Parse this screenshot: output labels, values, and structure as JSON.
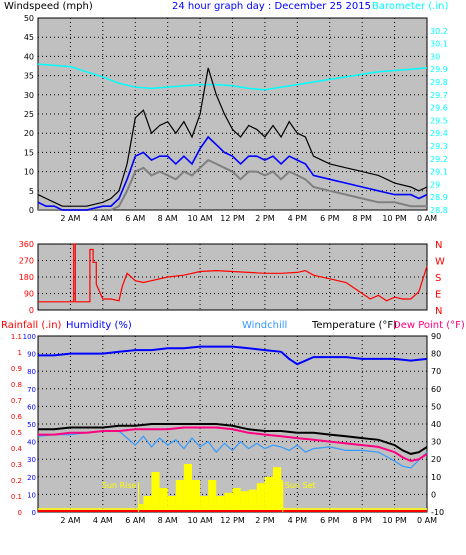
{
  "colors": {
    "panel_bg": "#c0c0c0",
    "wind_black": "#000000",
    "wind_blue": "#0000ff",
    "wind_grey": "#808080",
    "barometer": "#00ffff",
    "direction": "#ff0000",
    "humidity": "#0000ff",
    "temperature": "#000000",
    "dew_point": "#ff0080",
    "windchill": "#3399ff",
    "rain": "#ffff00",
    "rain_base": "#ff0000"
  },
  "chart_data": [
    {
      "type": "line",
      "title": "24 hour graph day : December 25 2015",
      "ylabel": "Windspeed (mph)",
      "y2label": "Barometer (.in)",
      "x_ticks": [
        "2 AM",
        "4 AM",
        "6 AM",
        "8 AM",
        "10 AM",
        "12 PM",
        "2 PM",
        "4 PM",
        "6 PM",
        "8 PM",
        "10 PM",
        "0 AM"
      ],
      "xlim": [
        0,
        24
      ],
      "ylim": [
        0,
        50
      ],
      "y_ticks": [
        "0",
        "5",
        "10",
        "15",
        "20",
        "25",
        "30",
        "35",
        "40",
        "45",
        "50"
      ],
      "y2lim": [
        28.8,
        30.3
      ],
      "y2_ticks": [
        "28.8",
        "28.9",
        "29",
        "29.1",
        "29.2",
        "29.3",
        "29.4",
        "29.5",
        "29.6",
        "29.7",
        "29.8",
        "29.9",
        "30",
        "30.1",
        "30.2"
      ],
      "grid": true,
      "series": [
        {
          "key": "gust",
          "x": [
            0,
            0.5,
            1,
            1.5,
            2,
            3,
            4,
            4.5,
            5,
            5.5,
            6,
            6.5,
            7,
            7.5,
            8,
            8.5,
            9,
            9.5,
            10,
            10.5,
            11,
            11.5,
            12,
            12.5,
            13,
            13.5,
            14,
            14.5,
            15,
            15.5,
            16,
            16.5,
            17,
            18,
            19,
            20,
            21,
            22,
            23,
            23.5,
            24
          ],
          "values": [
            4,
            3,
            2,
            1,
            1,
            1,
            2,
            3,
            5,
            12,
            24,
            26,
            20,
            22,
            23,
            20,
            23,
            19,
            25,
            37,
            30,
            25,
            21,
            19,
            22,
            21,
            19,
            22,
            19,
            23,
            20,
            19,
            14,
            12,
            11,
            10,
            9,
            7,
            6,
            5,
            6
          ]
        },
        {
          "key": "average",
          "x": [
            0,
            0.5,
            1,
            1.5,
            2,
            3,
            4,
            4.5,
            5,
            5.5,
            6,
            6.5,
            7,
            7.5,
            8,
            8.5,
            9,
            9.5,
            10,
            10.5,
            11,
            11.5,
            12,
            12.5,
            13,
            13.5,
            14,
            14.5,
            15,
            15.5,
            16,
            16.5,
            17,
            18,
            19,
            20,
            21,
            22,
            23,
            23.5,
            24
          ],
          "values": [
            2,
            1,
            1,
            0,
            0,
            0,
            1,
            1,
            3,
            8,
            14,
            15,
            13,
            14,
            14,
            12,
            14,
            12,
            16,
            19,
            17,
            15,
            14,
            12,
            14,
            14,
            13,
            14,
            12,
            14,
            13,
            12,
            9,
            8,
            7,
            6,
            5,
            4,
            4,
            3,
            4
          ]
        },
        {
          "key": "low",
          "x": [
            0,
            1,
            2,
            3,
            4,
            4.5,
            5,
            5.5,
            6,
            6.5,
            7,
            7.5,
            8,
            8.5,
            9,
            9.5,
            10,
            10.5,
            11,
            11.5,
            12,
            12.5,
            13,
            13.5,
            14,
            14.5,
            15,
            15.5,
            16,
            16.5,
            17,
            18,
            19,
            20,
            21,
            22,
            23,
            24
          ],
          "values": [
            0,
            0,
            0,
            0,
            0,
            0,
            1,
            5,
            10,
            11,
            9,
            10,
            9,
            8,
            10,
            9,
            11,
            13,
            12,
            11,
            10,
            8,
            10,
            10,
            9,
            10,
            8,
            10,
            9,
            8,
            6,
            5,
            4,
            3,
            2,
            2,
            1,
            1
          ]
        },
        {
          "key": "barometer",
          "x": [
            0,
            1,
            2,
            3,
            4,
            5,
            6,
            7,
            8,
            9,
            10,
            11,
            12,
            13,
            14,
            15,
            16,
            17,
            18,
            19,
            20,
            21,
            22,
            23,
            24
          ],
          "values": [
            29.94,
            29.93,
            29.92,
            29.88,
            29.84,
            29.79,
            29.76,
            29.75,
            29.76,
            29.77,
            29.78,
            29.78,
            29.77,
            29.75,
            29.74,
            29.76,
            29.78,
            29.8,
            29.82,
            29.84,
            29.86,
            29.88,
            29.89,
            29.9,
            29.91
          ]
        }
      ]
    },
    {
      "type": "scatter",
      "ylabel": "Wind direction",
      "xlim": [
        0,
        24
      ],
      "ylim": [
        0,
        360
      ],
      "y_ticks": [
        "0",
        "90",
        "180",
        "270",
        "360"
      ],
      "dir_labels": [
        "N",
        "W",
        "S",
        "E",
        "N"
      ],
      "grid": true,
      "series": [
        {
          "key": "direction",
          "x": [
            0,
            1,
            2,
            2.2,
            2.2,
            2.3,
            2.3,
            3,
            3.2,
            3.2,
            3.4,
            3.4,
            3.6,
            3.6,
            4,
            4.5,
            5,
            5.2,
            5.5,
            6,
            6.5,
            7,
            8,
            9,
            10,
            11,
            12,
            13,
            14,
            15,
            16,
            16.5,
            17,
            18,
            19,
            19.5,
            20,
            20.5,
            21,
            21.5,
            22,
            22.5,
            23,
            23.5,
            24
          ],
          "values": [
            45,
            45,
            45,
            45,
            360,
            360,
            45,
            45,
            45,
            330,
            330,
            260,
            260,
            140,
            60,
            60,
            50,
            130,
            200,
            160,
            150,
            160,
            180,
            190,
            210,
            215,
            210,
            205,
            200,
            200,
            205,
            215,
            190,
            170,
            150,
            120,
            90,
            60,
            80,
            50,
            70,
            60,
            60,
            100,
            240
          ]
        }
      ]
    },
    {
      "type": "line",
      "left_labels": {
        "rainfall": "Rainfall (.in)",
        "humidity": "Humidity (%)"
      },
      "windchill_label": "Windchill",
      "temperature_label": "Temperature (°F)",
      "dewpoint_label": "Dew Point (°F)",
      "rain_ticks": [
        "0",
        "0.1",
        "0.2",
        "0.3",
        "0.4",
        "0.5",
        "0.6",
        "0.7",
        "0.8",
        "0.9",
        "1",
        "1.1"
      ],
      "rain_lim": [
        0,
        1.1
      ],
      "humidity_ticks": [
        "0",
        "10",
        "20",
        "30",
        "40",
        "50",
        "60",
        "70",
        "80",
        "90",
        "100"
      ],
      "humidity_lim": [
        0,
        100
      ],
      "temp_ticks": [
        "-10",
        "0",
        "10",
        "20",
        "30",
        "40",
        "50",
        "60",
        "70",
        "80",
        "90"
      ],
      "temp_lim": [
        -10,
        90
      ],
      "x_ticks": [
        "2 AM",
        "4 AM",
        "6 AM",
        "8 AM",
        "10 AM",
        "12 PM",
        "2 PM",
        "4 PM",
        "6 PM",
        "8 PM",
        "10 PM",
        "0 AM"
      ],
      "xlim": [
        0,
        24
      ],
      "annotations": {
        "sunrise": "Sun Rise",
        "sunset": "Sun Set"
      },
      "sunrise_x": 6.2,
      "sunset_x": 15.1,
      "grid": true,
      "series": [
        {
          "key": "humidity",
          "x": [
            0,
            1,
            2,
            3,
            4,
            5,
            6,
            7,
            8,
            9,
            10,
            11,
            12,
            13,
            14,
            15,
            15.5,
            16,
            17,
            18,
            19,
            20,
            21,
            22,
            23,
            24
          ],
          "values": [
            89,
            89,
            90,
            90,
            90,
            91,
            92,
            92,
            93,
            93,
            94,
            94,
            94,
            93,
            92,
            91,
            87,
            84,
            88,
            88,
            88,
            87,
            87,
            87,
            86,
            87
          ]
        },
        {
          "key": "temperature",
          "x": [
            0,
            1,
            2,
            3,
            4,
            5,
            6,
            7,
            8,
            9,
            10,
            11,
            12,
            13,
            14,
            15,
            16,
            17,
            18,
            19,
            20,
            21,
            22,
            22.5,
            23,
            23.5,
            24
          ],
          "values": [
            37,
            37,
            38,
            38,
            38,
            39,
            39,
            40,
            40,
            40,
            40,
            40,
            39,
            37,
            36,
            36,
            35,
            35,
            34,
            33,
            32,
            31,
            28,
            25,
            23,
            24,
            27
          ]
        },
        {
          "key": "dewpoint",
          "x": [
            0,
            1,
            2,
            3,
            4,
            5,
            6,
            7,
            8,
            9,
            10,
            11,
            12,
            13,
            14,
            15,
            16,
            17,
            18,
            19,
            20,
            21,
            22,
            22.5,
            23,
            23.5,
            24
          ],
          "values": [
            34,
            34,
            35,
            35,
            36,
            36,
            37,
            37,
            37,
            38,
            38,
            38,
            37,
            35,
            34,
            33,
            32,
            31,
            30,
            29,
            28,
            27,
            24,
            21,
            19,
            20,
            23
          ]
        },
        {
          "key": "windchill",
          "x": [
            0,
            1,
            2,
            3,
            4,
            5,
            6,
            6.5,
            7,
            7.5,
            8,
            8.5,
            9,
            9.5,
            10,
            10.5,
            11,
            11.5,
            12,
            12.5,
            13,
            13.5,
            14,
            14.5,
            15,
            15.5,
            16,
            16.5,
            17,
            18,
            19,
            20,
            21,
            22,
            22.5,
            23,
            24
          ],
          "values": [
            33,
            34,
            34,
            35,
            36,
            36,
            28,
            33,
            27,
            32,
            28,
            31,
            26,
            32,
            27,
            30,
            24,
            29,
            25,
            30,
            26,
            29,
            26,
            28,
            27,
            25,
            28,
            24,
            26,
            27,
            25,
            25,
            24,
            19,
            16,
            15,
            24
          ]
        },
        {
          "key": "rain",
          "x": [
            6.2,
            6.5,
            7,
            7.5,
            8,
            8.5,
            9,
            9.5,
            10,
            10.5,
            11,
            11.5,
            12,
            12.5,
            13,
            13.5,
            14,
            14.5,
            15,
            15.1
          ],
          "values": [
            0.05,
            0.1,
            0.25,
            0.15,
            0.1,
            0.2,
            0.3,
            0.2,
            0.1,
            0.2,
            0.1,
            0.12,
            0.15,
            0.13,
            0.14,
            0.18,
            0.22,
            0.28,
            0.2,
            0.0
          ]
        }
      ]
    }
  ]
}
